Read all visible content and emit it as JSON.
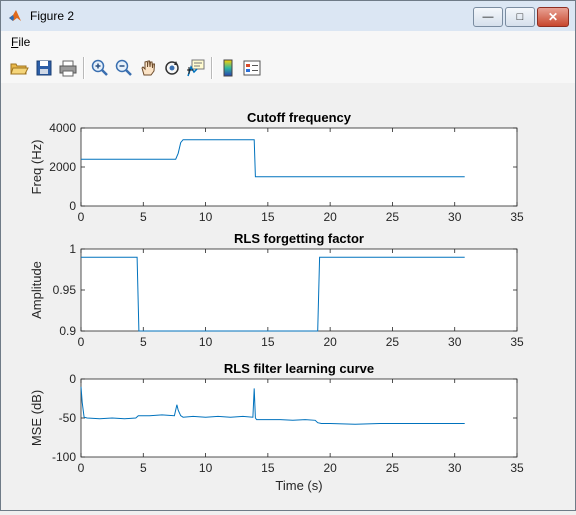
{
  "window": {
    "title": "Figure 2",
    "minimize_glyph": "—",
    "maximize_glyph": "□",
    "close_glyph": "✕"
  },
  "menu": {
    "file_mnemonic": "F",
    "file_rest": "ile"
  },
  "toolbar": {
    "buttons": [
      "open-file-icon",
      "save-icon",
      "print-icon",
      "zoom-in-icon",
      "zoom-out-icon",
      "pan-icon",
      "rotate-3d-icon",
      "data-cursor-icon",
      "colorbar-icon",
      "legend-icon"
    ]
  },
  "colors": {
    "line": "#0072bd",
    "axes_bg": "#ffffff",
    "figure_bg": "#f0f0f0"
  },
  "chart_data": [
    {
      "type": "line",
      "title": "Cutoff frequency",
      "xlabel": "",
      "ylabel": "Freq (Hz)",
      "xlim": [
        0,
        35
      ],
      "ylim": [
        0,
        4000
      ],
      "xticks": [
        "0",
        "5",
        "10",
        "15",
        "20",
        "25",
        "30",
        "35"
      ],
      "yticks": [
        "0",
        "2000",
        "4000"
      ],
      "series": [
        {
          "x": [
            0,
            7.6,
            7.8,
            8.0,
            8.2,
            13.9,
            14.0,
            30.8
          ],
          "y": [
            2400,
            2400,
            2700,
            3250,
            3400,
            3400,
            1500,
            1500
          ]
        }
      ]
    },
    {
      "type": "line",
      "title": "RLS forgetting factor",
      "xlabel": "",
      "ylabel": "Amplitude",
      "xlim": [
        0,
        35
      ],
      "ylim": [
        0.9,
        1
      ],
      "xticks": [
        "0",
        "5",
        "10",
        "15",
        "20",
        "25",
        "30",
        "35"
      ],
      "yticks": [
        "0.9",
        "0.95",
        "1"
      ],
      "series": [
        {
          "x": [
            0,
            4.5,
            4.65,
            19.0,
            19.15,
            30.8
          ],
          "y": [
            0.99,
            0.99,
            0.9,
            0.9,
            0.99,
            0.99
          ]
        }
      ]
    },
    {
      "type": "line",
      "title": "RLS filter learning curve",
      "xlabel": "Time (s)",
      "ylabel": "MSE (dB)",
      "xlim": [
        0,
        35
      ],
      "ylim": [
        -100,
        0
      ],
      "xticks": [
        "0",
        "5",
        "10",
        "15",
        "20",
        "25",
        "30",
        "35"
      ],
      "yticks": [
        "-100",
        "-50",
        "0"
      ],
      "series": [
        {
          "x": [
            0,
            0.1,
            0.25,
            0.5,
            1.5,
            2.5,
            3.5,
            4.4,
            4.6,
            5.5,
            6.5,
            7.5,
            7.7,
            7.8,
            8.0,
            8.2,
            9,
            10,
            11,
            12,
            13,
            13.8,
            13.9,
            14.0,
            14.1,
            15,
            16,
            17,
            18,
            18.8,
            19.0,
            19.3,
            20,
            22,
            24,
            26,
            28,
            30.8
          ],
          "y": [
            -10,
            -30,
            -49,
            -50,
            -51,
            -50,
            -51,
            -50,
            -47,
            -47,
            -46,
            -47,
            -33,
            -40,
            -47,
            -49,
            -48,
            -49,
            -48,
            -49,
            -48,
            -49,
            -12,
            -50,
            -52,
            -52,
            -52,
            -53,
            -52,
            -53,
            -56,
            -57,
            -57,
            -58,
            -57,
            -57,
            -57,
            -57
          ]
        }
      ]
    }
  ]
}
